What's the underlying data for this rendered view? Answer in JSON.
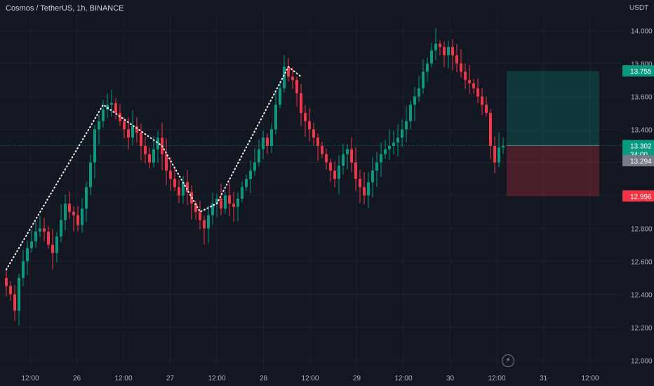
{
  "header": {
    "title": "Cosmos / TetherUS, 1h, BINANCE"
  },
  "axis": {
    "unit": "USDT"
  },
  "icons": {
    "bolt": "lightning-icon"
  },
  "chart_data": {
    "type": "candlestick",
    "ylim": [
      11.95,
      14.1
    ],
    "y_ticks": [
      "14.000",
      "13.800",
      "13.600",
      "13.400",
      "13.200",
      "13.000",
      "12.800",
      "12.600",
      "12.400",
      "12.200",
      "12.000"
    ],
    "x_ticks": [
      "12:00",
      "26",
      "12:00",
      "27",
      "12:00",
      "28",
      "12:00",
      "29",
      "12:00",
      "30",
      "12:00",
      "31",
      "12:00"
    ],
    "price_labels": {
      "target": "13.755",
      "current": "13.302",
      "countdown": "34:00",
      "current_alt": "13.294",
      "stop": "12.996"
    },
    "position": {
      "entry": 13.302,
      "target": 13.755,
      "stop": 12.996
    },
    "colors": {
      "up": "#089981",
      "down": "#f23645",
      "bg": "#131722",
      "grid": "#1e222d",
      "text": "#b2b5be"
    },
    "closes": [
      12.45,
      12.4,
      12.3,
      12.5,
      12.6,
      12.68,
      12.72,
      12.78,
      12.8,
      12.78,
      12.7,
      12.65,
      12.75,
      12.85,
      12.95,
      12.9,
      12.88,
      12.82,
      12.92,
      13.05,
      13.2,
      13.4,
      13.45,
      13.52,
      13.55,
      13.56,
      13.5,
      13.45,
      13.4,
      13.35,
      13.42,
      13.38,
      13.3,
      13.25,
      13.2,
      13.28,
      13.35,
      13.25,
      13.15,
      13.1,
      13.05,
      13.0,
      13.08,
      13.02,
      12.95,
      12.9,
      12.85,
      12.8,
      12.88,
      12.95,
      12.98,
      12.92,
      13.0,
      12.95,
      12.93,
      12.98,
      13.05,
      13.1,
      13.15,
      13.2,
      13.28,
      13.35,
      13.3,
      13.4,
      13.55,
      13.65,
      13.78,
      13.72,
      13.7,
      13.62,
      13.5,
      13.45,
      13.4,
      13.35,
      13.3,
      13.25,
      13.2,
      13.15,
      13.1,
      13.18,
      13.25,
      13.28,
      13.2,
      13.1,
      13.05,
      13.0,
      13.08,
      13.15,
      13.2,
      13.25,
      13.28,
      13.3,
      13.32,
      13.35,
      13.4,
      13.45,
      13.55,
      13.6,
      13.65,
      13.75,
      13.8,
      13.88,
      13.92,
      13.9,
      13.85,
      13.9,
      13.85,
      13.8,
      13.75,
      13.7,
      13.68,
      13.65,
      13.6,
      13.55,
      13.5,
      13.3,
      13.2,
      13.29,
      13.3
    ]
  }
}
